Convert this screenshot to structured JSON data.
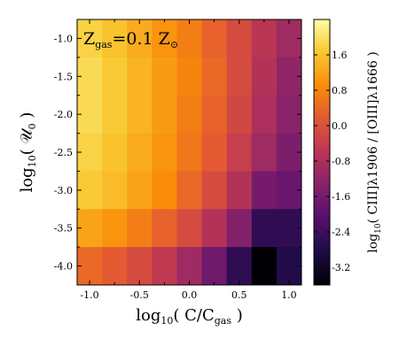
{
  "chart_data": {
    "type": "heatmap",
    "annotation": {
      "prefix": "Z",
      "sub": "gas",
      "eq": "=0.1 Z",
      "sun_symbol": "⊙"
    },
    "xlabel": {
      "prefix": "log",
      "sub": "10",
      "body": "( C/C",
      "body_sub": "gas",
      "close": " )"
    },
    "ylabel": {
      "prefix": "log",
      "sub": "10",
      "body": "( 𝒰",
      "body_sub": "0",
      "close": " )"
    },
    "colorbar_label": {
      "prefix": "log",
      "sub": "10",
      "body": "( CIII]λ1906 / [OIII]λ1666 )"
    },
    "x_ticks": [
      "-1.0",
      "-0.5",
      "0.0",
      "0.5",
      "1.0"
    ],
    "x_tick_values": [
      -1.0,
      -0.5,
      0.0,
      0.5,
      1.0
    ],
    "y_ticks": [
      "-1.0",
      "-1.5",
      "-2.0",
      "-2.5",
      "-3.0",
      "-3.5",
      "-4.0"
    ],
    "y_tick_values": [
      -1.0,
      -1.5,
      -2.0,
      -2.5,
      -3.0,
      -3.5,
      -4.0
    ],
    "colorbar_ticks": [
      "1.6",
      "0.8",
      "0.0",
      "-0.8",
      "-1.6",
      "-2.4",
      "-3.2"
    ],
    "colorbar_tick_values": [
      1.6,
      0.8,
      0.0,
      -0.8,
      -1.6,
      -2.4,
      -3.2
    ],
    "xlim": [
      -1.125,
      1.125
    ],
    "ylim": [
      -4.25,
      -0.75
    ],
    "clim": [
      -3.6,
      2.4
    ],
    "colormap": "inferno",
    "x_centers": [
      -1.0,
      -0.75,
      -0.5,
      -0.25,
      0.0,
      0.25,
      0.5,
      0.75,
      1.0
    ],
    "y_centers": [
      -1.0,
      -1.5,
      -2.0,
      -2.5,
      -3.0,
      -3.5,
      -4.0
    ],
    "values": [
      [
        1.8,
        1.6,
        1.3,
        1.0,
        0.7,
        0.3,
        -0.1,
        -0.6,
        -1.0
      ],
      [
        1.9,
        1.7,
        1.4,
        1.1,
        0.8,
        0.4,
        -0.1,
        -0.7,
        -1.2
      ],
      [
        1.9,
        1.7,
        1.4,
        1.1,
        0.7,
        0.3,
        -0.2,
        -0.8,
        -1.3
      ],
      [
        1.8,
        1.6,
        1.3,
        1.0,
        0.6,
        0.2,
        -0.4,
        -1.0,
        -1.5
      ],
      [
        1.7,
        1.5,
        1.2,
        0.9,
        0.4,
        -0.1,
        -0.7,
        -1.6,
        -1.8
      ],
      [
        1.2,
        1.0,
        0.7,
        0.3,
        -0.1,
        -0.7,
        -1.4,
        -2.6,
        -2.6
      ],
      [
        0.4,
        0.2,
        -0.1,
        -0.5,
        -1.0,
        -1.7,
        -2.6,
        -3.6,
        -2.8
      ]
    ]
  }
}
